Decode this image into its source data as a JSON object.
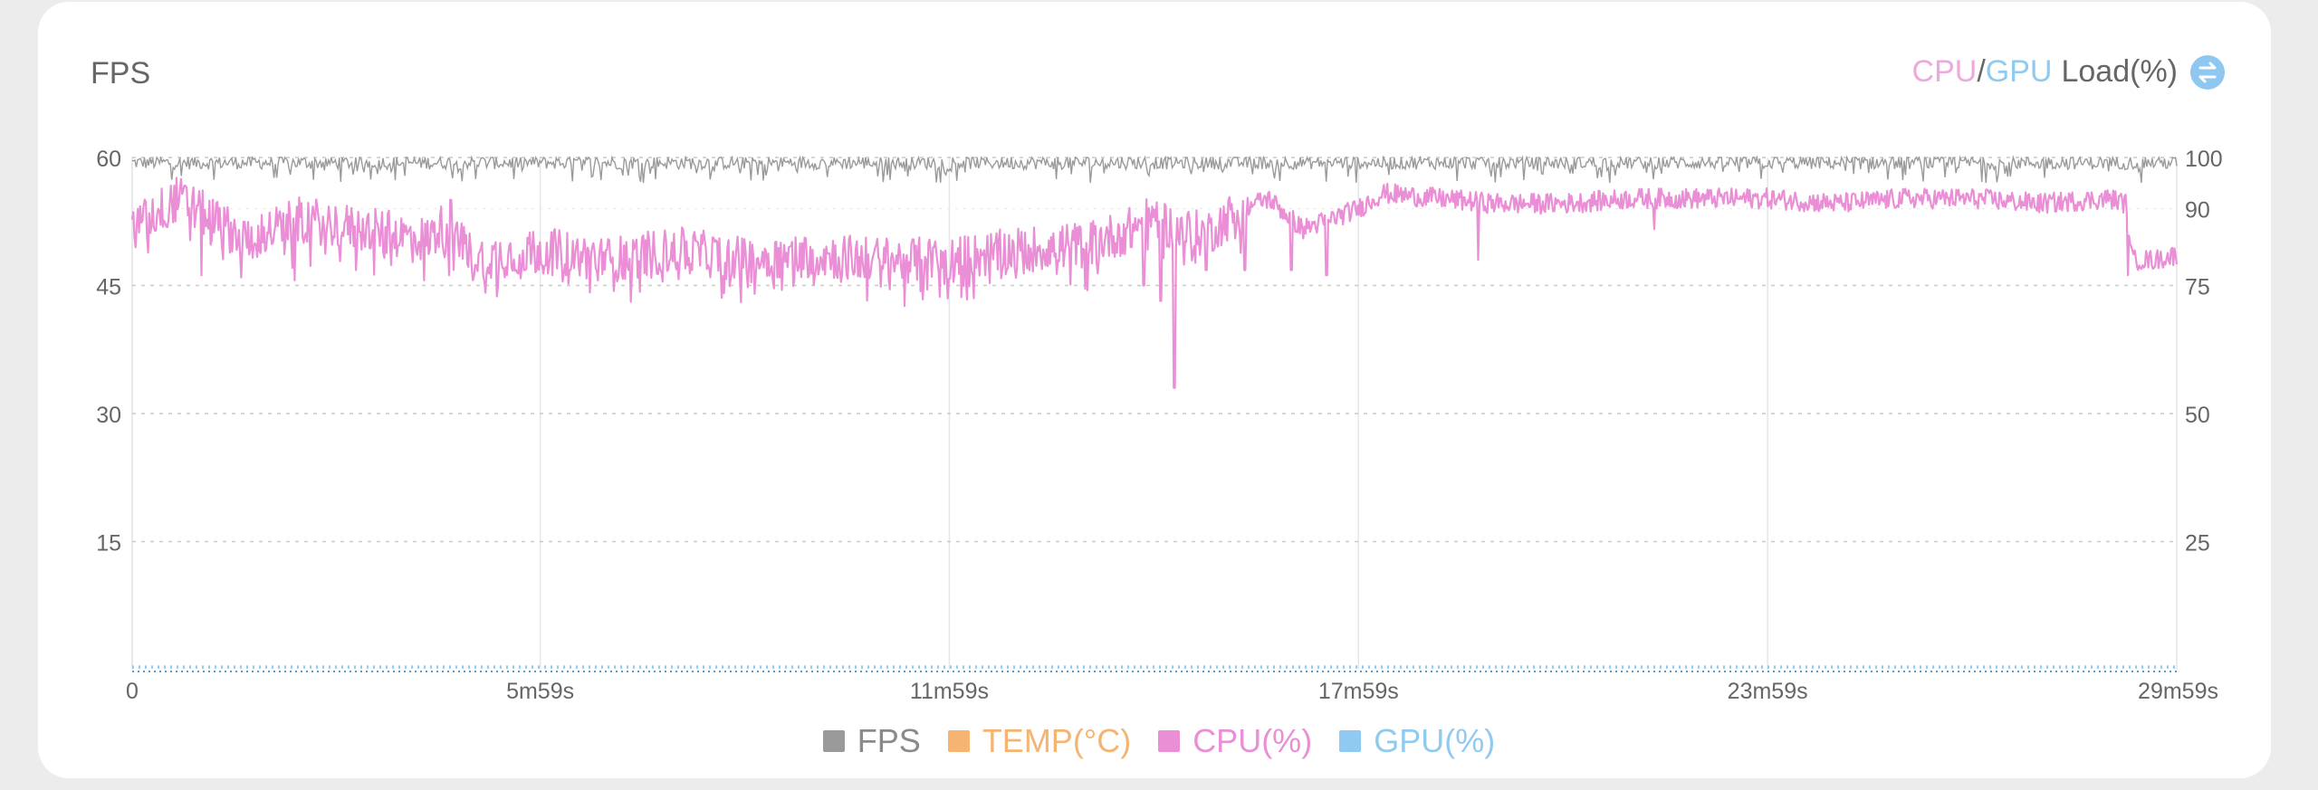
{
  "card": {
    "left_title": "FPS",
    "right_title": {
      "cpu": "CPU",
      "separator": "/",
      "gpu": "GPU",
      "load": "Load(%)"
    },
    "swap_icon": "swap-vertical-icon"
  },
  "colors": {
    "fps": "#9a9a9a",
    "temp": "#f5b472",
    "cpu": "#ea8fd6",
    "gpu": "#8fcaf0",
    "grid": "#c9c9c9",
    "axis_text": "#666666"
  },
  "legend": [
    {
      "key": "fps",
      "label": "FPS"
    },
    {
      "key": "temp",
      "label": "TEMP(°C)"
    },
    {
      "key": "cpu",
      "label": "CPU(%)"
    },
    {
      "key": "gpu",
      "label": "GPU(%)"
    }
  ],
  "chart_data": {
    "type": "line",
    "x_unit": "seconds",
    "x_range": [
      0,
      1799
    ],
    "x_ticks": [
      {
        "value": 0,
        "label": "0"
      },
      {
        "value": 359,
        "label": "5m59s"
      },
      {
        "value": 719,
        "label": "11m59s"
      },
      {
        "value": 1079,
        "label": "17m59s"
      },
      {
        "value": 1439,
        "label": "23m59s"
      },
      {
        "value": 1799,
        "label": "29m59s"
      }
    ],
    "y_left": {
      "label": "FPS",
      "range": [
        0,
        60
      ],
      "ticks": [
        15,
        30,
        45,
        60
      ]
    },
    "y_right": {
      "label": "CPU/GPU Load(%)",
      "range": [
        0,
        100
      ],
      "ticks": [
        25,
        50,
        75,
        90,
        100
      ]
    },
    "grid": "dashed horizontal + vertical at x ticks",
    "legend_position": "bottom-center",
    "series": [
      {
        "name": "FPS",
        "axis": "left",
        "style": "noisy band",
        "approx_values": {
          "typical": 59.5,
          "min": 57,
          "max": 60
        }
      },
      {
        "name": "TEMP(°C)",
        "axis": "left",
        "values": []
      },
      {
        "name": "CPU(%)",
        "axis": "right",
        "keypoints": [
          [
            0,
            86
          ],
          [
            40,
            92
          ],
          [
            100,
            84
          ],
          [
            150,
            88
          ],
          [
            200,
            86
          ],
          [
            260,
            84
          ],
          [
            280,
            88
          ],
          [
            300,
            80
          ],
          [
            359,
            82
          ],
          [
            420,
            80
          ],
          [
            480,
            82
          ],
          [
            540,
            80
          ],
          [
            600,
            81
          ],
          [
            660,
            80
          ],
          [
            719,
            80
          ],
          [
            780,
            82
          ],
          [
            840,
            83
          ],
          [
            880,
            86
          ],
          [
            900,
            89
          ],
          [
            915,
            86
          ],
          [
            945,
            85
          ],
          [
            975,
            90
          ],
          [
            1000,
            92
          ],
          [
            1030,
            86
          ],
          [
            1079,
            90
          ],
          [
            1100,
            93
          ],
          [
            1150,
            92
          ],
          [
            1200,
            91
          ],
          [
            1260,
            91
          ],
          [
            1320,
            92
          ],
          [
            1380,
            92
          ],
          [
            1439,
            92
          ],
          [
            1500,
            91
          ],
          [
            1560,
            92
          ],
          [
            1620,
            92
          ],
          [
            1680,
            91
          ],
          [
            1740,
            92
          ],
          [
            1755,
            91
          ],
          [
            1760,
            80
          ],
          [
            1780,
            80
          ],
          [
            1799,
            81
          ]
        ],
        "dips": [
          [
            61,
            77
          ],
          [
            143,
            76
          ],
          [
            197,
            78
          ],
          [
            257,
            76
          ],
          [
            279,
            77
          ],
          [
            370,
            77
          ],
          [
            493,
            78
          ],
          [
            583,
            76
          ],
          [
            717,
            77
          ],
          [
            890,
            75
          ],
          [
            905,
            72
          ],
          [
            917,
            55
          ],
          [
            945,
            78
          ],
          [
            979,
            78
          ],
          [
            1020,
            78
          ],
          [
            1051,
            77
          ],
          [
            1184,
            80
          ],
          [
            1339,
            86
          ],
          [
            1756,
            77
          ]
        ]
      },
      {
        "name": "GPU(%)",
        "axis": "right",
        "values_pct": 0.5,
        "style": "dotted near zero"
      }
    ]
  }
}
